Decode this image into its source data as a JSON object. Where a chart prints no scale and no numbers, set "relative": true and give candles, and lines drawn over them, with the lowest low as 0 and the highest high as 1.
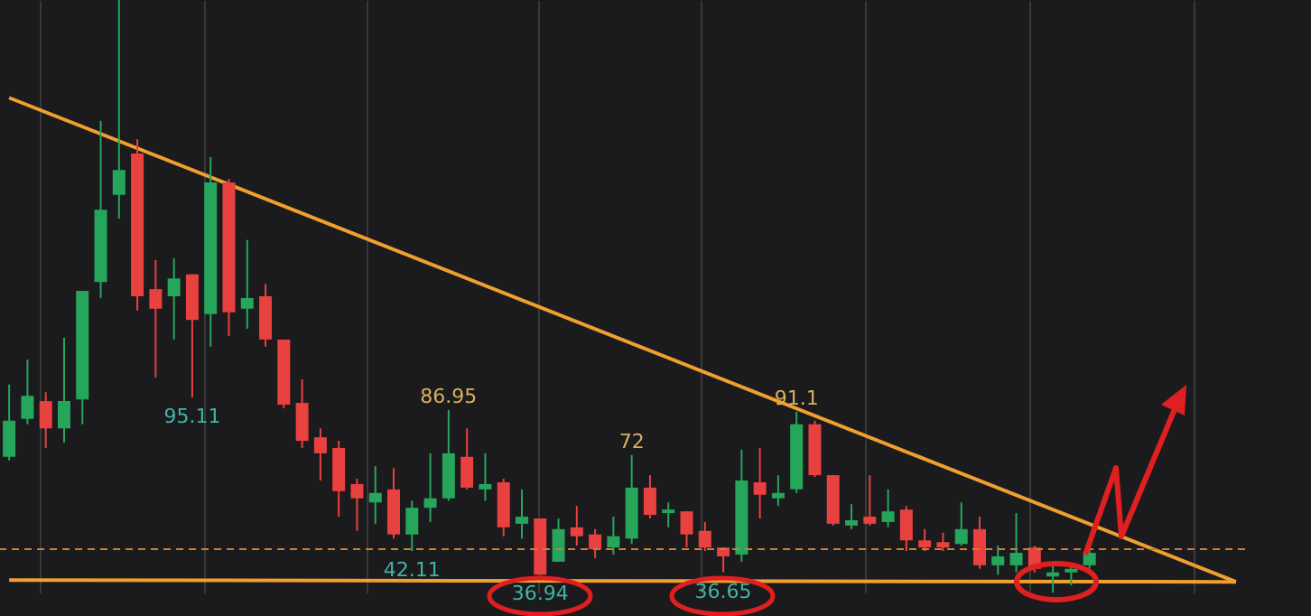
{
  "chart_data": {
    "type": "candlestick",
    "relative": true,
    "grid": true,
    "categories": [
      null,
      null,
      null,
      null,
      null,
      null,
      null,
      null,
      null,
      null,
      null,
      null,
      null,
      null,
      null,
      null,
      null,
      null,
      null,
      null,
      null,
      null,
      null,
      null,
      null,
      null,
      null,
      null,
      null,
      null,
      null,
      null,
      null,
      null,
      null,
      null,
      null,
      null,
      null,
      null,
      null,
      null,
      null,
      null,
      null,
      null,
      null,
      null,
      null,
      null,
      null,
      null,
      null,
      null,
      null,
      null,
      null,
      null,
      null,
      null,
      null,
      null,
      null,
      null,
      null,
      null,
      null,
      null
    ],
    "ohlc": [
      [
        0.229,
        0.351,
        0.223,
        0.29
      ],
      [
        0.293,
        0.393,
        0.284,
        0.332
      ],
      [
        0.323,
        0.338,
        0.244,
        0.277
      ],
      [
        0.277,
        0.43,
        0.253,
        0.323
      ],
      [
        0.326,
        0.509,
        0.284,
        0.509
      ],
      [
        0.524,
        0.796,
        0.497,
        0.646
      ],
      [
        0.671,
        1,
        0.631,
        0.713
      ],
      [
        0.741,
        0.765,
        0.476,
        0.5
      ],
      [
        0.512,
        0.561,
        0.363,
        0.479
      ],
      [
        0.5,
        0.564,
        0.427,
        0.53
      ],
      [
        0.537,
        0.537,
        0.329,
        0.46
      ],
      [
        0.47,
        0.735,
        0.415,
        0.692
      ],
      [
        0.692,
        0.698,
        0.433,
        0.473
      ],
      [
        0.479,
        0.595,
        0.445,
        0.497
      ],
      [
        0.5,
        0.521,
        0.415,
        0.427
      ],
      [
        0.427,
        0.427,
        0.311,
        0.317
      ],
      [
        0.32,
        0.36,
        0.244,
        0.256
      ],
      [
        0.262,
        0.277,
        0.189,
        0.235
      ],
      [
        0.244,
        0.256,
        0.128,
        0.171
      ],
      [
        0.183,
        0.192,
        0.104,
        0.159
      ],
      [
        0.152,
        0.213,
        0.116,
        0.168
      ],
      [
        0.174,
        0.21,
        0.091,
        0.098
      ],
      [
        0.098,
        0.155,
        0.07,
        0.143
      ],
      [
        0.143,
        0.235,
        0.119,
        0.159
      ],
      [
        0.159,
        0.308,
        0.155,
        0.235
      ],
      [
        0.229,
        0.277,
        0.174,
        0.177
      ],
      [
        0.174,
        0.235,
        0.155,
        0.183
      ],
      [
        0.186,
        0.192,
        0.095,
        0.11
      ],
      [
        0.116,
        0.174,
        0.091,
        0.128
      ],
      [
        0.125,
        0.125,
        0.03,
        0.03
      ],
      [
        0.052,
        0.125,
        0.052,
        0.107
      ],
      [
        0.11,
        0.146,
        0.079,
        0.095
      ],
      [
        0.098,
        0.107,
        0.058,
        0.073
      ],
      [
        0.076,
        0.128,
        0.064,
        0.095
      ],
      [
        0.091,
        0.232,
        0.082,
        0.177
      ],
      [
        0.177,
        0.198,
        0.125,
        0.131
      ],
      [
        0.134,
        0.152,
        0.11,
        0.14
      ],
      [
        0.137,
        0.137,
        0.076,
        0.098
      ],
      [
        0.104,
        0.119,
        0.07,
        0.076
      ],
      [
        0.076,
        0.076,
        0.034,
        0.061
      ],
      [
        0.064,
        0.241,
        0.052,
        0.189
      ],
      [
        0.186,
        0.244,
        0.125,
        0.165
      ],
      [
        0.159,
        0.198,
        0.146,
        0.168
      ],
      [
        0.174,
        0.305,
        0.168,
        0.284
      ],
      [
        0.284,
        0.29,
        0.195,
        0.198
      ],
      [
        0.198,
        0.198,
        0.113,
        0.116
      ],
      [
        0.113,
        0.149,
        0.107,
        0.122
      ],
      [
        0.128,
        0.198,
        0.113,
        0.116
      ],
      [
        0.119,
        0.174,
        0.11,
        0.137
      ],
      [
        0.14,
        0.146,
        0.07,
        0.088
      ],
      [
        0.088,
        0.107,
        0.07,
        0.076
      ],
      [
        0.085,
        0.101,
        0.07,
        0.076
      ],
      [
        0.082,
        0.152,
        0.079,
        0.107
      ],
      [
        0.107,
        0.128,
        0.04,
        0.046
      ],
      [
        0.046,
        0.079,
        0.03,
        0.061
      ],
      [
        0.046,
        0.134,
        0.034,
        0.067
      ],
      [
        0.076,
        0.079,
        0.034,
        0.04
      ],
      [
        0.027,
        0.049,
        0,
        0.034
      ],
      [
        0.034,
        0.049,
        0.012,
        0.04
      ],
      [
        0.046,
        0.082,
        0.04,
        0.067
      ],
      null,
      null,
      null,
      null,
      null,
      null,
      null,
      null
    ],
    "colors": [
      "#26a65b",
      "#26a65b",
      "#e8413f",
      "#26a65b",
      "#26a65b",
      "#26a65b",
      "#26a65b",
      "#e8413f",
      "#e8413f",
      "#26a65b",
      "#e8413f",
      "#26a65b",
      "#e8413f",
      "#26a65b",
      "#e8413f",
      "#e8413f",
      "#e8413f",
      "#e8413f",
      "#e8413f",
      "#e8413f",
      "#26a65b",
      "#e8413f",
      "#26a65b",
      "#26a65b",
      "#26a65b",
      "#e8413f",
      "#26a65b",
      "#e8413f",
      "#26a65b",
      "#e8413f",
      "#26a65b",
      "#e8413f",
      "#e8413f",
      "#26a65b",
      "#26a65b",
      "#e8413f",
      "#26a65b",
      "#e8413f",
      "#e8413f",
      "#e8413f",
      "#26a65b",
      "#e8413f",
      "#26a65b",
      "#26a65b",
      "#e8413f",
      "#e8413f",
      "#26a65b",
      "#e8413f",
      "#26a65b",
      "#e8413f",
      "#e8413f",
      "#e8413f",
      "#26a65b",
      "#e8413f",
      "#26a65b",
      "#26a65b",
      "#e8413f",
      "#26a65b",
      "#26a65b",
      "#26a65b",
      null,
      null,
      null,
      null,
      null,
      null,
      null,
      null
    ],
    "series": [
      {
        "type": "line",
        "color": "#f0a030",
        "values": [
          0.835,
          null,
          null,
          null,
          null,
          null,
          null,
          null,
          null,
          null,
          null,
          null,
          null,
          null,
          null,
          null,
          null,
          null,
          null,
          null,
          null,
          null,
          null,
          null,
          null,
          null,
          null,
          null,
          null,
          null,
          null,
          null,
          null,
          null,
          null,
          null,
          null,
          null,
          null,
          null,
          null,
          null,
          null,
          null,
          null,
          null,
          null,
          null,
          null,
          null,
          null,
          null,
          null,
          null,
          null,
          null,
          null,
          null,
          null,
          null,
          null,
          null,
          null,
          null,
          null,
          null,
          null,
          0.018
        ]
      },
      {
        "type": "line",
        "color": "#f0a030",
        "values": [
          0.021,
          null,
          null,
          null,
          null,
          null,
          null,
          null,
          null,
          null,
          null,
          null,
          null,
          null,
          null,
          null,
          null,
          null,
          null,
          null,
          null,
          null,
          null,
          null,
          null,
          null,
          null,
          null,
          null,
          null,
          null,
          null,
          null,
          null,
          null,
          null,
          null,
          null,
          null,
          null,
          null,
          null,
          null,
          null,
          null,
          null,
          null,
          null,
          null,
          null,
          null,
          null,
          null,
          null,
          null,
          null,
          null,
          null,
          null,
          null,
          null,
          null,
          null,
          null,
          null,
          null,
          null,
          0.018
        ]
      }
    ],
    "ref_lines": [
      {
        "axis": "y",
        "value": 0.073,
        "color": "#c8803a",
        "line_style": "dashed"
      }
    ],
    "annotations": [
      {
        "text": "95.11",
        "y": 0.329
      },
      {
        "text": "86.95",
        "y": 0.308
      },
      {
        "text": "42.11",
        "y": 0.07
      },
      {
        "text": "36.94",
        "y": 0.03
      },
      {
        "text": "72",
        "y": 0.232
      },
      {
        "text": "36.65",
        "y": 0.034
      },
      {
        "text": "91.1",
        "y": 0.305
      }
    ]
  }
}
